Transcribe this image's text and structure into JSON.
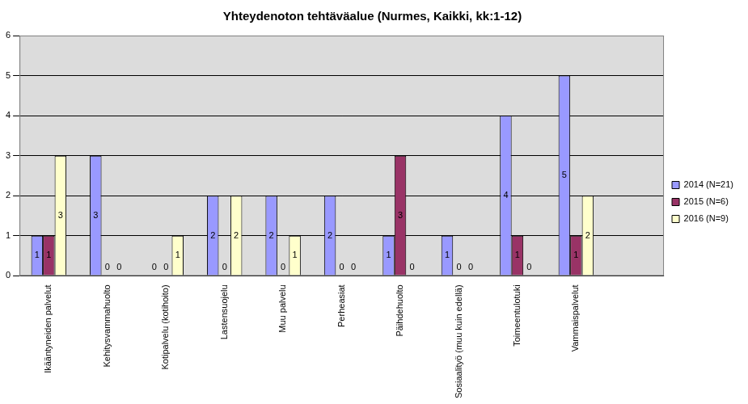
{
  "chart_data": {
    "type": "bar",
    "title": "Yhteydenoton tehtäväalue (Nurmes, Kaikki, kk:1-12)",
    "categories": [
      "Ikääntyneiden palvelut",
      "Kehitysvammahuolto",
      "Kotipalvelu (kotihoito)",
      "Lastensuojelu",
      "Muu palvelu",
      "Perheasiat",
      "Päihdehuolto",
      "Sosiaalityö (muu kuin edellä)",
      "Toimeentulotuki",
      "Vammaispalvelut",
      null
    ],
    "series": [
      {
        "name": "2014 (N=21)",
        "color": "#9999ff",
        "values": [
          1,
          3,
          0,
          2,
          2,
          2,
          1,
          1,
          4,
          5,
          null
        ]
      },
      {
        "name": "2015 (N=6)",
        "color": "#993366",
        "values": [
          1,
          0,
          0,
          0,
          0,
          0,
          3,
          0,
          1,
          1,
          null
        ]
      },
      {
        "name": "2016 (N=9)",
        "color": "#ffffcc",
        "values": [
          3,
          0,
          1,
          2,
          1,
          0,
          0,
          0,
          0,
          2,
          null
        ]
      }
    ],
    "ylim": [
      0,
      6
    ],
    "yticks": [
      0,
      1,
      2,
      3,
      4,
      5,
      6
    ],
    "grid": true,
    "legend": "right",
    "data_labels": true
  }
}
